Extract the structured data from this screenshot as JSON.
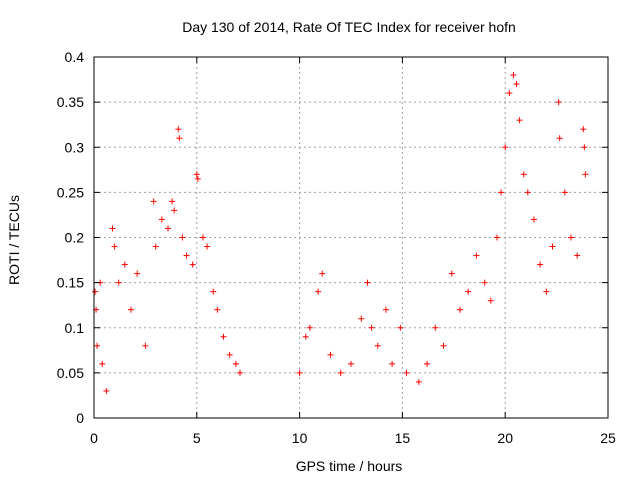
{
  "chart_data": {
    "type": "scatter",
    "title": "Day 130 of 2014, Rate Of TEC Index for receiver hofn",
    "xlabel": "GPS time / hours",
    "ylabel": "ROTI / TECUs",
    "xlim": [
      0,
      25
    ],
    "ylim": [
      0,
      0.4
    ],
    "x_ticks": [
      0,
      5,
      10,
      15,
      20,
      25
    ],
    "x_tick_labels": [
      "0",
      "5",
      "10",
      "15",
      "20",
      "25"
    ],
    "y_ticks": [
      0,
      0.05,
      0.1,
      0.15,
      0.2,
      0.25,
      0.3,
      0.35,
      0.4
    ],
    "y_tick_labels": [
      "0",
      "0.05",
      "0.1",
      "0.15",
      "0.2",
      "0.25",
      "0.3",
      "0.35",
      "0.4"
    ],
    "grid": true,
    "marker": "+",
    "marker_color": "#ff0000",
    "data_gap_hours": [
      7.3,
      9.9
    ],
    "series": [
      {
        "name": "ROTI",
        "points": [
          [
            0.05,
            0.14
          ],
          [
            0.1,
            0.12
          ],
          [
            0.15,
            0.08
          ],
          [
            0.3,
            0.15
          ],
          [
            0.4,
            0.06
          ],
          [
            0.6,
            0.03
          ],
          [
            0.9,
            0.21
          ],
          [
            1.0,
            0.19
          ],
          [
            1.2,
            0.15
          ],
          [
            1.5,
            0.17
          ],
          [
            1.8,
            0.12
          ],
          [
            2.1,
            0.16
          ],
          [
            2.5,
            0.08
          ],
          [
            2.9,
            0.24
          ],
          [
            3.0,
            0.19
          ],
          [
            3.3,
            0.22
          ],
          [
            3.6,
            0.21
          ],
          [
            3.8,
            0.24
          ],
          [
            3.9,
            0.23
          ],
          [
            4.1,
            0.32
          ],
          [
            4.15,
            0.31
          ],
          [
            4.3,
            0.2
          ],
          [
            4.5,
            0.18
          ],
          [
            4.8,
            0.17
          ],
          [
            5.0,
            0.27
          ],
          [
            5.05,
            0.265
          ],
          [
            5.3,
            0.2
          ],
          [
            5.5,
            0.19
          ],
          [
            5.8,
            0.14
          ],
          [
            6.0,
            0.12
          ],
          [
            6.3,
            0.09
          ],
          [
            6.6,
            0.07
          ],
          [
            6.9,
            0.06
          ],
          [
            7.1,
            0.05
          ],
          [
            10.0,
            0.05
          ],
          [
            10.3,
            0.09
          ],
          [
            10.5,
            0.1
          ],
          [
            10.9,
            0.14
          ],
          [
            11.1,
            0.16
          ],
          [
            11.5,
            0.07
          ],
          [
            12.0,
            0.05
          ],
          [
            12.5,
            0.06
          ],
          [
            13.0,
            0.11
          ],
          [
            13.3,
            0.15
          ],
          [
            13.5,
            0.1
          ],
          [
            13.8,
            0.08
          ],
          [
            14.2,
            0.12
          ],
          [
            14.5,
            0.06
          ],
          [
            14.9,
            0.1
          ],
          [
            15.2,
            0.05
          ],
          [
            15.8,
            0.04
          ],
          [
            16.2,
            0.06
          ],
          [
            16.6,
            0.1
          ],
          [
            17.0,
            0.08
          ],
          [
            17.4,
            0.16
          ],
          [
            17.8,
            0.12
          ],
          [
            18.2,
            0.14
          ],
          [
            18.6,
            0.18
          ],
          [
            19.0,
            0.15
          ],
          [
            19.3,
            0.13
          ],
          [
            19.6,
            0.2
          ],
          [
            19.8,
            0.25
          ],
          [
            20.0,
            0.3
          ],
          [
            20.2,
            0.36
          ],
          [
            20.4,
            0.38
          ],
          [
            20.55,
            0.37
          ],
          [
            20.7,
            0.33
          ],
          [
            20.9,
            0.27
          ],
          [
            21.1,
            0.25
          ],
          [
            21.4,
            0.22
          ],
          [
            21.7,
            0.17
          ],
          [
            22.0,
            0.14
          ],
          [
            22.3,
            0.19
          ],
          [
            22.6,
            0.35
          ],
          [
            22.65,
            0.31
          ],
          [
            22.9,
            0.25
          ],
          [
            23.2,
            0.2
          ],
          [
            23.5,
            0.18
          ],
          [
            23.8,
            0.32
          ],
          [
            23.85,
            0.3
          ],
          [
            23.9,
            0.27
          ]
        ]
      }
    ]
  }
}
